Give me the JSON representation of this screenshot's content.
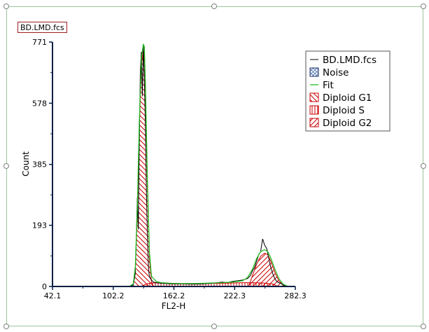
{
  "file_label": "BD.LMD.fcs",
  "chart_data": {
    "type": "area",
    "title": "",
    "xlabel": "FL2-H",
    "ylabel": "Count",
    "xlim": [
      42.1,
      282.3
    ],
    "ylim": [
      0,
      771
    ],
    "xticks": [
      "42.1",
      "102.2",
      "162.2",
      "222.3",
      "282.3"
    ],
    "yticks": [
      "0",
      "193",
      "385",
      "578",
      "771"
    ],
    "legend_position": "top-right",
    "legend": [
      {
        "label": "BD.LMD.fcs",
        "key": "data"
      },
      {
        "label": "Noise",
        "key": "noise"
      },
      {
        "label": "Fit",
        "key": "fit"
      },
      {
        "label": "Diploid G1",
        "key": "g1"
      },
      {
        "label": "Diploid S",
        "key": "s"
      },
      {
        "label": "Diploid G2",
        "key": "g2"
      }
    ],
    "colors": {
      "data": "#000000",
      "fit": "#22bb22",
      "components": "#cc0000",
      "axis": "#0a1f44"
    },
    "data": {
      "x": [
        118,
        122,
        124,
        125,
        126,
        127,
        128,
        129,
        130,
        131,
        132,
        133,
        134,
        135,
        136,
        137,
        138,
        139,
        140,
        142,
        145,
        150,
        155,
        160,
        170,
        180,
        190,
        200,
        210,
        215,
        220,
        225,
        230,
        235,
        238,
        240,
        242,
        244,
        246,
        248,
        250,
        252,
        254,
        256,
        258,
        260,
        262,
        264,
        266,
        268,
        270,
        275
      ],
      "y": [
        0,
        5,
        40,
        150,
        280,
        180,
        450,
        680,
        740,
        600,
        760,
        650,
        500,
        300,
        150,
        60,
        30,
        25,
        20,
        14,
        12,
        10,
        9,
        8,
        8,
        7,
        8,
        10,
        14,
        12,
        16,
        18,
        20,
        25,
        35,
        50,
        60,
        80,
        100,
        110,
        150,
        130,
        120,
        90,
        60,
        40,
        25,
        15,
        12,
        10,
        5,
        0
      ]
    },
    "fit": {
      "x": [
        118,
        122,
        124,
        126,
        128,
        130,
        132,
        133,
        134,
        136,
        138,
        140,
        145,
        150,
        160,
        170,
        180,
        190,
        200,
        210,
        220,
        230,
        235,
        240,
        244,
        248,
        252,
        255,
        258,
        262,
        266,
        270,
        275
      ],
      "y": [
        0,
        8,
        60,
        250,
        520,
        720,
        765,
        755,
        640,
        330,
        110,
        32,
        15,
        12,
        10,
        9,
        9,
        10,
        11,
        12,
        14,
        18,
        28,
        55,
        88,
        110,
        116,
        110,
        90,
        55,
        25,
        8,
        0
      ]
    },
    "g1": {
      "x": [
        118,
        122,
        124,
        126,
        128,
        130,
        132,
        133,
        134,
        136,
        138,
        140,
        142
      ],
      "y": [
        0,
        6,
        50,
        230,
        500,
        700,
        745,
        735,
        620,
        310,
        90,
        15,
        0
      ]
    },
    "s": {
      "x": [
        130,
        135,
        140,
        150,
        160,
        170,
        180,
        190,
        200,
        210,
        220,
        230,
        240,
        250,
        260,
        265
      ],
      "y": [
        0,
        8,
        11,
        11,
        10,
        9,
        9,
        9,
        10,
        10,
        11,
        12,
        12,
        11,
        8,
        0
      ]
    },
    "g2": {
      "x": [
        236,
        240,
        244,
        248,
        252,
        255,
        258,
        262,
        266,
        270,
        274
      ],
      "y": [
        0,
        35,
        70,
        95,
        105,
        100,
        80,
        45,
        18,
        5,
        0
      ]
    }
  }
}
